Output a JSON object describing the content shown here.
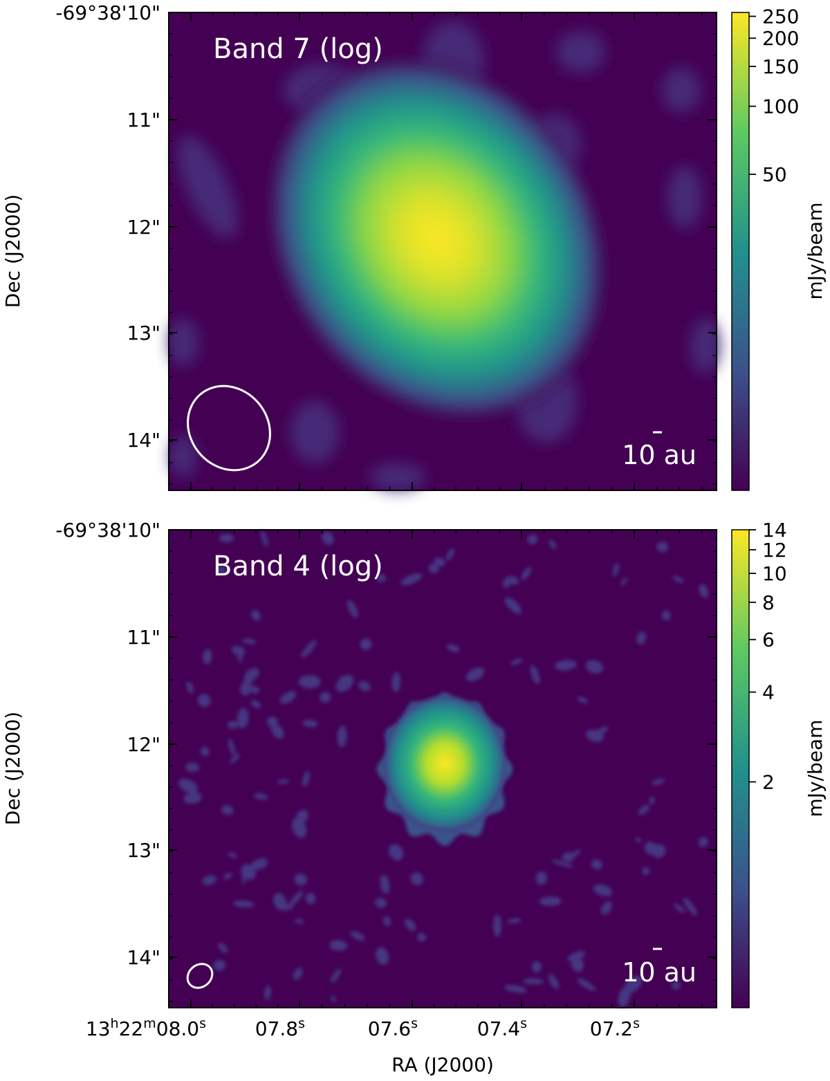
{
  "figure": {
    "xlabel": "RA (J2000)",
    "ylabel": "Dec (J2000)",
    "colorbar_label": "mJy/beam",
    "colormap": "viridis",
    "colormap_colors": [
      "#440154",
      "#3b528b",
      "#21918c",
      "#5ec962",
      "#fde725"
    ],
    "annotation_color": "#ffffff",
    "ra_ticks": [
      {
        "pos": 0.0,
        "h": "13",
        "m": "22",
        "s": "08.0",
        "label_parts": [
          "13",
          "h",
          "22",
          "m",
          "08.0",
          "s"
        ]
      },
      {
        "pos": 0.2,
        "label": "07.8",
        "sup": "s"
      },
      {
        "pos": 0.4,
        "label": "07.6",
        "sup": "s"
      },
      {
        "pos": 0.6,
        "label": "07.4",
        "sup": "s"
      },
      {
        "pos": 0.8,
        "label": "07.2",
        "sup": "s"
      }
    ],
    "ra_first_label": {
      "p1": "13",
      "s1": "h",
      "p2": "22",
      "s2": "m",
      "p3": "08.0",
      "s3": "s"
    },
    "dec_tick_labels": [
      "-69°38'10\"",
      "11\"",
      "12\"",
      "13\"",
      "14\""
    ]
  },
  "chart_data": [
    {
      "type": "heatmap",
      "title": "Band 7 (log)",
      "colorbar_scale": "log",
      "colorbar_ticks": [
        50,
        100,
        150,
        200,
        250
      ],
      "colorbar_ticklabels": [
        "50",
        "100",
        "150",
        "200",
        "250"
      ],
      "colorbar_range": [
        2,
        260
      ],
      "source": {
        "ra_frac": 0.51,
        "dec_frac": 0.45,
        "peak": 260
      },
      "beam_shape": "ellipse",
      "scale_bar_label": "10 au"
    },
    {
      "type": "heatmap",
      "title": "Band 4 (log)",
      "colorbar_scale": "log",
      "colorbar_ticks": [
        2,
        4,
        6,
        8,
        10,
        12,
        14
      ],
      "colorbar_ticklabels": [
        "2",
        "4",
        "6",
        "8",
        "10",
        "12",
        "14"
      ],
      "colorbar_range": [
        0.35,
        14
      ],
      "source": {
        "ra_frac": 0.51,
        "dec_frac": 0.45,
        "peak": 14
      },
      "beam_shape": "ellipse",
      "scale_bar_label": "10 au"
    }
  ]
}
